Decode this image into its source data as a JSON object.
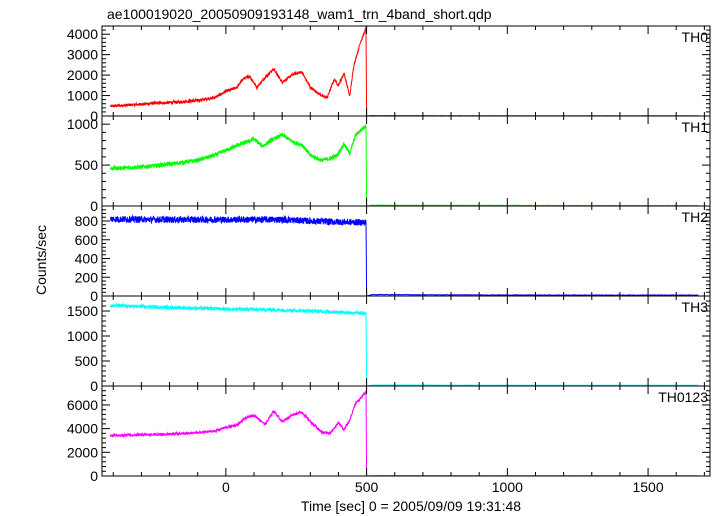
{
  "chart_data": {
    "type": "line",
    "title": "ae100019020_20050909193148_wam1_trn_4band_short.qdp",
    "xlabel": "Time [sec] 0 = 2005/09/09 19:31:48",
    "ylabel": "Counts/sec",
    "xlim": [
      -440,
      1720
    ],
    "x_ticks": [
      0,
      500,
      1000,
      1500
    ],
    "x_tick_labels": [
      "0",
      "500",
      "1000",
      "1500"
    ],
    "grid": false,
    "panels": [
      {
        "name": "TH0",
        "color": "#ff0000",
        "ylim": [
          0,
          4400
        ],
        "y_ticks": [
          0,
          1000,
          2000,
          3000,
          4000
        ],
        "y_tick_labels": [
          "0",
          "1000",
          "2000",
          "3000",
          "4000"
        ],
        "x": [
          -410,
          -340,
          -260,
          -180,
          -100,
          -40,
          0,
          40,
          60,
          85,
          110,
          140,
          170,
          200,
          240,
          270,
          300,
          340,
          360,
          385,
          400,
          420,
          440,
          455,
          470,
          480,
          490,
          498,
          500,
          520,
          800,
          1200,
          1680
        ],
        "values": [
          480,
          540,
          620,
          670,
          760,
          900,
          1200,
          1400,
          1800,
          1950,
          1400,
          1900,
          2300,
          1650,
          2050,
          2150,
          1400,
          1000,
          900,
          1800,
          1500,
          2100,
          950,
          2500,
          3200,
          3700,
          4000,
          4300,
          0,
          20,
          15,
          10,
          10
        ],
        "noise": 70
      },
      {
        "name": "TH1",
        "color": "#00ff00",
        "ylim": [
          0,
          1100
        ],
        "y_ticks": [
          0,
          500,
          1000
        ],
        "y_tick_labels": [
          "0",
          "500",
          "1000"
        ],
        "x": [
          -410,
          -340,
          -260,
          -180,
          -100,
          -40,
          0,
          40,
          80,
          100,
          130,
          160,
          200,
          240,
          270,
          300,
          340,
          370,
          395,
          420,
          440,
          460,
          480,
          498,
          500,
          520,
          800,
          1200,
          1680
        ],
        "values": [
          460,
          470,
          490,
          520,
          560,
          620,
          680,
          740,
          790,
          820,
          730,
          800,
          870,
          780,
          750,
          620,
          560,
          580,
          620,
          760,
          640,
          860,
          930,
          980,
          0,
          10,
          8,
          6,
          5
        ],
        "noise": 25
      },
      {
        "name": "TH2",
        "color": "#0000ff",
        "ylim": [
          0,
          960
        ],
        "y_ticks": [
          0,
          200,
          400,
          600,
          800
        ],
        "y_tick_labels": [
          "0",
          "200",
          "400",
          "600",
          "800"
        ],
        "x": [
          -410,
          -200,
          0,
          200,
          300,
          400,
          498,
          500,
          520,
          800,
          1200,
          1680
        ],
        "values": [
          820,
          815,
          815,
          815,
          800,
          790,
          785,
          0,
          15,
          12,
          10,
          10
        ],
        "noise": 35
      },
      {
        "name": "TH3",
        "color": "#00ffff",
        "ylim": [
          0,
          1800
        ],
        "y_ticks": [
          0,
          500,
          1000,
          1500
        ],
        "y_tick_labels": [
          "0",
          "500",
          "1000",
          "1500"
        ],
        "x": [
          -410,
          -200,
          0,
          200,
          400,
          498,
          500,
          520,
          800,
          1200,
          1680
        ],
        "values": [
          1610,
          1570,
          1540,
          1520,
          1480,
          1450,
          0,
          20,
          18,
          15,
          15
        ],
        "noise": 35
      },
      {
        "name": "TH0123",
        "color": "#ff00ff",
        "ylim": [
          0,
          7600
        ],
        "y_ticks": [
          0,
          2000,
          4000,
          6000
        ],
        "y_tick_labels": [
          "0",
          "2000",
          "4000",
          "6000"
        ],
        "x": [
          -410,
          -340,
          -260,
          -180,
          -100,
          -40,
          0,
          40,
          70,
          100,
          140,
          170,
          200,
          240,
          270,
          300,
          340,
          370,
          400,
          420,
          440,
          460,
          480,
          498,
          500,
          520,
          800,
          1200,
          1680
        ],
        "values": [
          3400,
          3450,
          3500,
          3560,
          3650,
          3800,
          4100,
          4300,
          4900,
          5150,
          4350,
          5500,
          4600,
          5200,
          5400,
          4600,
          3700,
          3600,
          4500,
          3900,
          4700,
          6100,
          6600,
          7100,
          0,
          30,
          25,
          20,
          20
        ],
        "noise": 110
      }
    ]
  }
}
